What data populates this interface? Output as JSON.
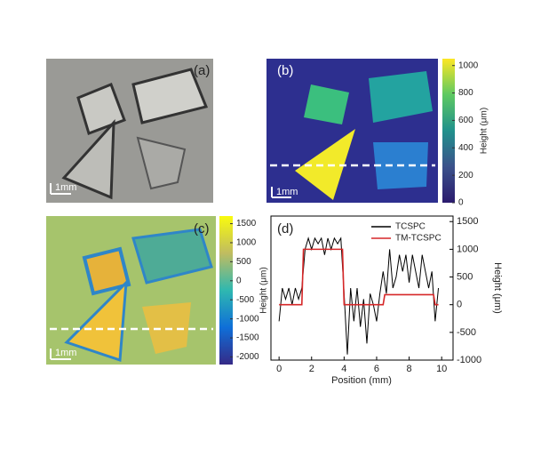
{
  "panels": [
    {
      "label": "(a)",
      "scale_bar": "1mm"
    },
    {
      "label": "(b)",
      "scale_bar": "1mm"
    },
    {
      "label": "(c)",
      "scale_bar": "1mm"
    }
  ],
  "colorbars": [
    {
      "label": "Height (μm)",
      "lim": [
        0,
        1050
      ],
      "ticks": [
        0,
        200,
        400,
        600,
        800,
        1000
      ]
    },
    {
      "label": "Height (μm)",
      "lim": [
        -2200,
        1700
      ],
      "ticks": [
        -2000,
        -1500,
        -1000,
        -500,
        0,
        500,
        1000,
        1500
      ]
    }
  ],
  "chart_data": {
    "type": "line",
    "panel_label": "(d)",
    "x_label": "Position (mm)",
    "y_label": "Height (μm)",
    "xlim": [
      -0.5,
      10.7
    ],
    "xticks": [
      0,
      2,
      4,
      6,
      8,
      10
    ],
    "ylim": [
      -1000,
      1600
    ],
    "yticks": [
      -1000,
      -500,
      0,
      500,
      1000,
      1500
    ],
    "legend": "upper-center",
    "series": [
      {
        "name": "TCSPC",
        "color": "#000000",
        "x": [
          0,
          0.2,
          0.4,
          0.6,
          0.8,
          1.0,
          1.2,
          1.4,
          1.6,
          1.8,
          2.0,
          2.2,
          2.4,
          2.6,
          2.8,
          3.0,
          3.2,
          3.4,
          3.6,
          3.8,
          4.0,
          4.2,
          4.4,
          4.6,
          4.8,
          5.0,
          5.2,
          5.4,
          5.6,
          5.8,
          6.0,
          6.2,
          6.4,
          6.6,
          6.8,
          7.0,
          7.2,
          7.4,
          7.6,
          7.8,
          8.0,
          8.2,
          8.4,
          8.6,
          8.8,
          9.0,
          9.2,
          9.4,
          9.6,
          9.8
        ],
        "values": [
          -300,
          300,
          100,
          300,
          0,
          300,
          100,
          300,
          1000,
          1200,
          1000,
          1200,
          1100,
          1200,
          900,
          1200,
          1000,
          1200,
          1100,
          1200,
          200,
          -900,
          300,
          -300,
          300,
          -400,
          100,
          -700,
          200,
          0,
          -300,
          200,
          600,
          200,
          1000,
          300,
          500,
          900,
          600,
          900,
          400,
          900,
          600,
          300,
          900,
          600,
          300,
          600,
          -300,
          300
        ]
      },
      {
        "name": "TM-TCSPC",
        "color": "#d62728",
        "x": [
          0,
          1.4,
          1.5,
          3.9,
          4.0,
          6.4,
          6.5,
          9.5,
          9.6,
          9.8
        ],
        "values": [
          0,
          0,
          1000,
          1000,
          0,
          0,
          180,
          180,
          0,
          0
        ]
      }
    ]
  }
}
